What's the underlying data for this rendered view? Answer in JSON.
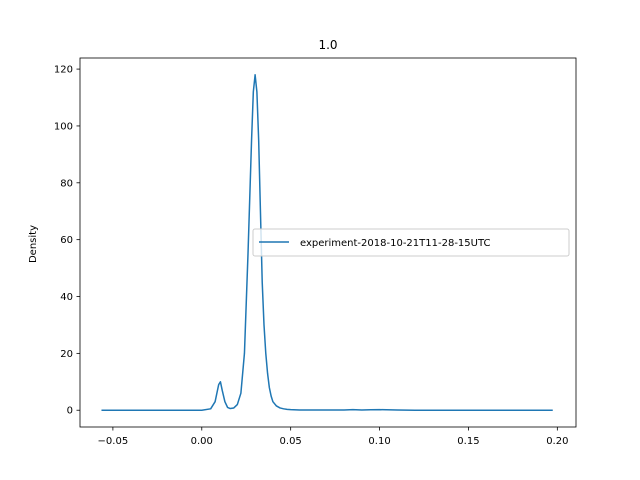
{
  "chart_data": {
    "type": "line",
    "title": "1.0",
    "xlabel": "",
    "ylabel": "Density",
    "xlim": [
      -0.0685,
      0.2105
    ],
    "ylim": [
      -5.9,
      123.9
    ],
    "xticks": [
      -0.05,
      0.0,
      0.05,
      0.1,
      0.15,
      0.2
    ],
    "xtick_labels": [
      "−0.05",
      "0.00",
      "0.05",
      "0.10",
      "0.15",
      "0.20"
    ],
    "yticks": [
      0,
      20,
      40,
      60,
      80,
      100,
      120
    ],
    "ytick_labels": [
      "0",
      "20",
      "40",
      "60",
      "80",
      "100",
      "120"
    ],
    "grid": false,
    "legend": {
      "position": "center-right"
    },
    "series": [
      {
        "name": "experiment-2018-10-21T11-28-15UTC",
        "color": "#1f77b4",
        "x": [
          -0.056,
          -0.03,
          0.0,
          0.005,
          0.0075,
          0.0095,
          0.0105,
          0.0115,
          0.013,
          0.0145,
          0.016,
          0.018,
          0.02,
          0.022,
          0.024,
          0.026,
          0.028,
          0.029,
          0.03,
          0.031,
          0.032,
          0.033,
          0.034,
          0.035,
          0.036,
          0.037,
          0.038,
          0.039,
          0.04,
          0.042,
          0.044,
          0.046,
          0.048,
          0.05,
          0.055,
          0.06,
          0.07,
          0.08,
          0.085,
          0.09,
          0.095,
          0.1,
          0.11,
          0.12,
          0.15,
          0.18,
          0.197
        ],
        "y": [
          0,
          0,
          0,
          0.5,
          3,
          9,
          10,
          7,
          3,
          1,
          0.6,
          0.8,
          2,
          6,
          20,
          55,
          95,
          112,
          118,
          112,
          95,
          70,
          45,
          30,
          20,
          13,
          8,
          5,
          3,
          1.5,
          0.8,
          0.5,
          0.3,
          0.2,
          0.1,
          0.1,
          0.1,
          0.1,
          0.2,
          0.1,
          0.15,
          0.2,
          0.1,
          0,
          0,
          0,
          0
        ]
      }
    ]
  }
}
